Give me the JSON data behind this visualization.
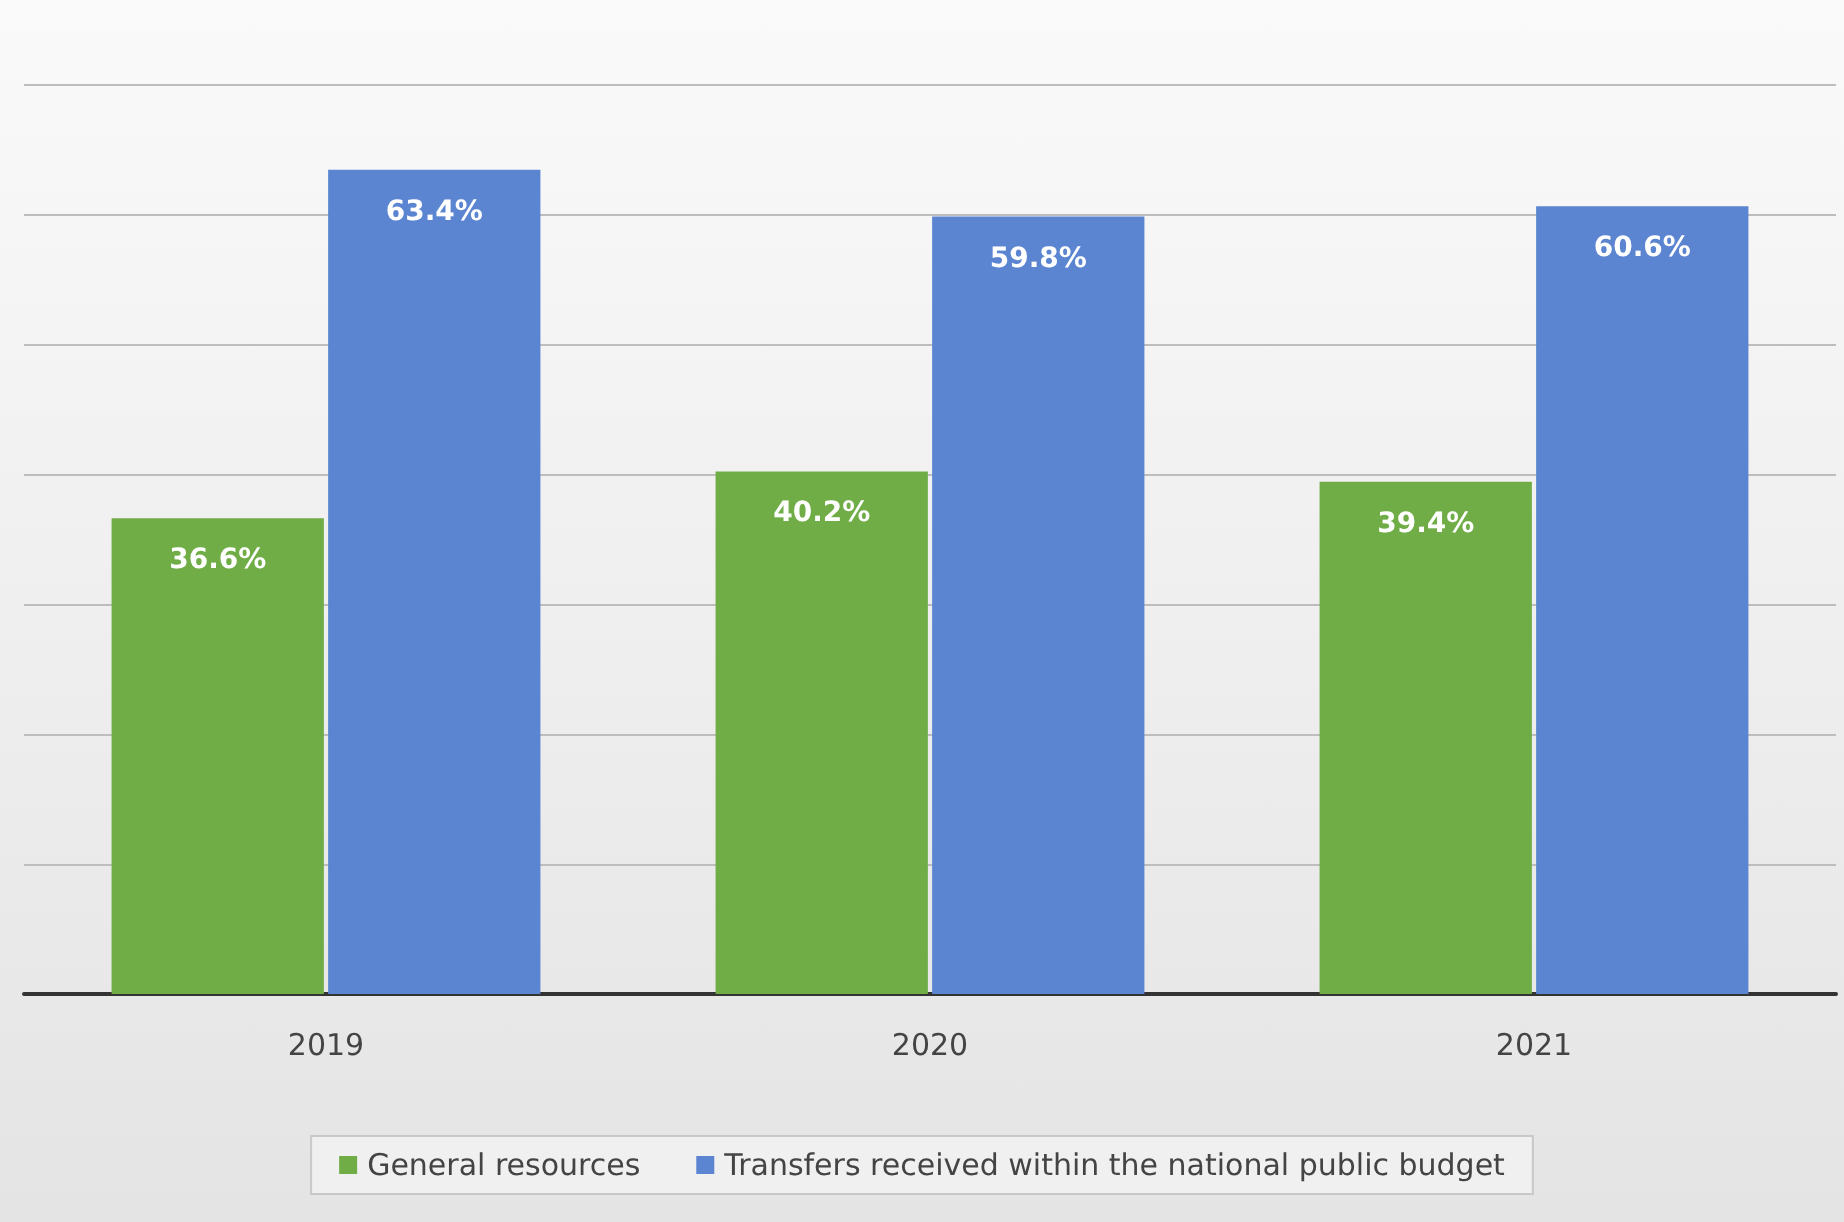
{
  "chart_data": {
    "type": "bar",
    "categories": [
      "2019",
      "2020",
      "2021"
    ],
    "series": [
      {
        "name": "General resources",
        "color": "#70ad47",
        "values": [
          36.6,
          40.2,
          39.4
        ],
        "value_labels": [
          "36.6%",
          "40.2%",
          "39.4%"
        ]
      },
      {
        "name": "Transfers received within the national public budget",
        "color": "#5b84d1",
        "values": [
          63.4,
          59.8,
          60.6
        ],
        "value_labels": [
          "63.4%",
          "59.8%",
          "60.6%"
        ]
      }
    ],
    "tick_labels": "x",
    "grid": "y",
    "legend": "bottom"
  }
}
